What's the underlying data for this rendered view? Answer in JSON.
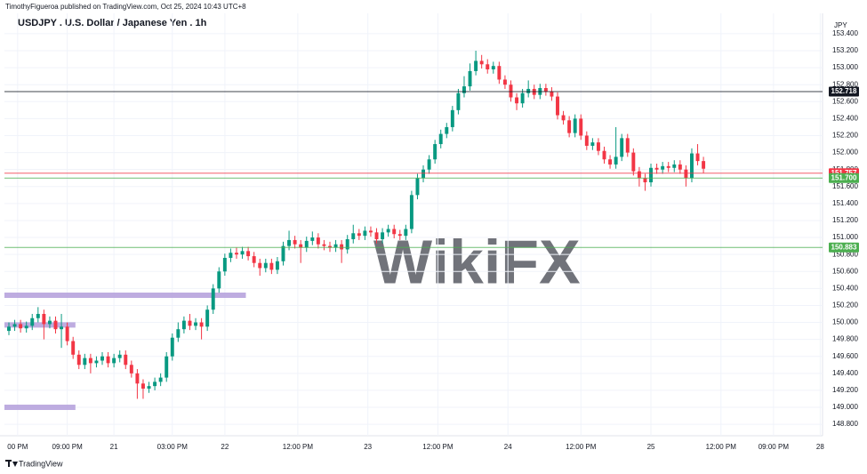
{
  "header": {
    "publisher": "TimothyFigueroa published on TradingView.com, Oct 25, 2024 10:43 UTC+8"
  },
  "footer": {
    "brand": "TradingView"
  },
  "watermark": "WikiFX",
  "chart_data": {
    "type": "candlestick",
    "title": "USDJPY . U.S. Dollar / Japanese Yen . 1h",
    "currency": "JPY",
    "up_color": "#089981",
    "down_color": "#f23645",
    "open": [
      149.9,
      149.95,
      149.98,
      149.93,
      149.96,
      150.05,
      150.1,
      149.98,
      150.02,
      149.92,
      149.95,
      149.78,
      149.62,
      149.5,
      149.58,
      149.52,
      149.55,
      149.6,
      149.52,
      149.58,
      149.62,
      149.5,
      149.4,
      149.28,
      149.22,
      149.25,
      149.3,
      149.35,
      149.6,
      149.82,
      149.92,
      150.02,
      149.96,
      150.0,
      149.95,
      150.15,
      150.4,
      150.6,
      150.76,
      150.82,
      150.8,
      150.84,
      150.78,
      150.7,
      150.64,
      150.7,
      150.62,
      150.72,
      150.9,
      150.97,
      150.92,
      150.88,
      150.96,
      151.0,
      150.92,
      150.9,
      150.88,
      150.92,
      150.86,
      150.98,
      151.05,
      151.02,
      151.08,
      151.06,
      150.98,
      151.06,
      151.1,
      151.04,
      151.02,
      151.1,
      151.5,
      151.7,
      151.8,
      151.92,
      152.1,
      152.22,
      152.3,
      152.5,
      152.7,
      152.78,
      152.96,
      153.08,
      153.04,
      152.98,
      153.02,
      152.86,
      152.8,
      152.65,
      152.58,
      152.7,
      152.75,
      152.68,
      152.76,
      152.72,
      152.66,
      152.44,
      152.38,
      152.23,
      152.4,
      152.2,
      152.08,
      152.12,
      152.02,
      151.92,
      151.86,
      151.95,
      152.17,
      152.0,
      151.78,
      151.7,
      151.65,
      151.82,
      151.8,
      151.84,
      151.82,
      151.86,
      151.8,
      151.7,
      151.99,
      151.9
    ],
    "high": [
      150.0,
      150.03,
      150.03,
      150.01,
      150.1,
      150.18,
      150.15,
      150.07,
      150.07,
      150.1,
      150.0,
      149.83,
      149.67,
      149.63,
      149.63,
      149.6,
      149.65,
      149.65,
      149.63,
      149.67,
      149.67,
      149.55,
      149.45,
      149.33,
      149.3,
      149.35,
      149.4,
      149.65,
      149.87,
      150.0,
      150.07,
      150.1,
      150.05,
      150.05,
      150.2,
      150.45,
      150.65,
      150.81,
      150.87,
      150.88,
      150.89,
      150.89,
      150.83,
      150.75,
      150.75,
      150.75,
      150.77,
      150.95,
      151.08,
      151.02,
      150.97,
      151.01,
      151.07,
      151.05,
      150.97,
      150.95,
      150.97,
      150.97,
      151.03,
      151.15,
      151.1,
      151.13,
      151.13,
      151.11,
      151.11,
      151.15,
      151.15,
      151.09,
      151.15,
      151.55,
      151.75,
      151.85,
      151.97,
      152.15,
      152.27,
      152.35,
      152.55,
      152.75,
      152.9,
      153.05,
      153.2,
      153.15,
      153.1,
      153.07,
      153.07,
      152.91,
      152.85,
      152.7,
      152.75,
      152.85,
      152.8,
      152.81,
      152.81,
      152.77,
      152.71,
      152.49,
      152.43,
      152.45,
      152.45,
      152.25,
      152.17,
      152.17,
      152.07,
      151.97,
      152.3,
      152.22,
      152.22,
      152.05,
      151.83,
      151.75,
      151.87,
      151.87,
      151.89,
      151.89,
      151.91,
      151.91,
      151.85,
      152.05,
      152.1,
      151.95
    ],
    "low": [
      149.85,
      149.9,
      149.88,
      149.88,
      149.91,
      150.0,
      149.8,
      149.93,
      149.87,
      149.7,
      149.73,
      149.57,
      149.45,
      149.45,
      149.4,
      149.47,
      149.5,
      149.47,
      149.47,
      149.53,
      149.45,
      149.35,
      149.1,
      149.1,
      149.17,
      149.2,
      149.25,
      149.3,
      149.55,
      149.77,
      149.87,
      149.91,
      149.91,
      149.8,
      149.9,
      150.1,
      150.35,
      150.55,
      150.71,
      150.75,
      150.75,
      150.73,
      150.65,
      150.55,
      150.59,
      150.57,
      150.57,
      150.67,
      150.85,
      150.87,
      150.7,
      150.83,
      150.91,
      150.87,
      150.85,
      150.83,
      150.83,
      150.7,
      150.81,
      150.93,
      150.97,
      150.97,
      151.01,
      150.93,
      150.93,
      151.01,
      150.99,
      150.97,
      150.97,
      151.05,
      151.45,
      151.65,
      151.75,
      151.87,
      152.05,
      152.17,
      152.25,
      152.45,
      152.65,
      152.73,
      152.91,
      152.99,
      152.93,
      152.93,
      152.81,
      152.75,
      152.6,
      152.5,
      152.53,
      152.65,
      152.63,
      152.63,
      152.67,
      152.61,
      152.39,
      152.33,
      152.18,
      152.18,
      152.15,
      152.03,
      152.03,
      151.97,
      151.87,
      151.81,
      151.81,
      151.9,
      151.95,
      151.73,
      151.6,
      151.55,
      151.6,
      151.75,
      151.75,
      151.77,
      151.77,
      151.75,
      151.6,
      151.65,
      151.85,
      151.76
    ],
    "close": [
      149.95,
      149.98,
      149.93,
      149.96,
      150.05,
      150.1,
      149.98,
      150.02,
      149.92,
      149.95,
      149.78,
      149.62,
      149.5,
      149.58,
      149.52,
      149.55,
      149.6,
      149.52,
      149.58,
      149.62,
      149.5,
      149.4,
      149.28,
      149.22,
      149.25,
      149.3,
      149.35,
      149.6,
      149.82,
      149.92,
      150.02,
      149.96,
      150.0,
      149.95,
      150.15,
      150.4,
      150.6,
      150.76,
      150.82,
      150.8,
      150.84,
      150.78,
      150.7,
      150.64,
      150.7,
      150.62,
      150.72,
      150.9,
      150.97,
      150.92,
      150.88,
      150.96,
      151.0,
      150.92,
      150.9,
      150.88,
      150.92,
      150.86,
      150.98,
      151.05,
      151.02,
      151.08,
      151.06,
      150.98,
      151.06,
      151.1,
      151.04,
      151.02,
      151.1,
      151.5,
      151.7,
      151.8,
      151.92,
      152.1,
      152.22,
      152.3,
      152.5,
      152.7,
      152.78,
      152.96,
      153.08,
      153.04,
      152.98,
      153.02,
      152.86,
      152.8,
      152.65,
      152.58,
      152.7,
      152.75,
      152.68,
      152.76,
      152.72,
      152.66,
      152.44,
      152.38,
      152.23,
      152.4,
      152.2,
      152.08,
      152.12,
      152.02,
      151.92,
      151.86,
      151.95,
      152.17,
      152.0,
      151.78,
      151.7,
      151.65,
      151.82,
      151.8,
      151.84,
      151.82,
      151.86,
      151.8,
      151.7,
      151.99,
      151.9,
      151.81
    ],
    "xlim": [
      -0.76,
      139.4
    ],
    "xticks": [
      {
        "value": 1.5,
        "label": "00 PM"
      },
      {
        "value": 10,
        "label": "09:00 PM"
      },
      {
        "value": 18,
        "label": "21"
      },
      {
        "value": 28,
        "label": "03:00 PM"
      },
      {
        "value": 37,
        "label": "22"
      },
      {
        "value": 49.5,
        "label": "12:00 PM"
      },
      {
        "value": 61.5,
        "label": "23"
      },
      {
        "value": 73.5,
        "label": "12:00 PM"
      },
      {
        "value": 85.5,
        "label": "24"
      },
      {
        "value": 98,
        "label": "12:00 PM"
      },
      {
        "value": 110,
        "label": "25"
      },
      {
        "value": 122,
        "label": "12:00 PM"
      },
      {
        "value": 131,
        "label": "09:00 PM"
      },
      {
        "value": 139,
        "label": "28"
      }
    ],
    "ylim": [
      148.665,
      153.64
    ],
    "yticks": [
      {
        "value": 148.8,
        "label": "148.800"
      },
      {
        "value": 149.0,
        "label": "149.000"
      },
      {
        "value": 149.2,
        "label": "149.200"
      },
      {
        "value": 149.4,
        "label": "149.400"
      },
      {
        "value": 149.6,
        "label": "149.600"
      },
      {
        "value": 149.8,
        "label": "149.800"
      },
      {
        "value": 150.0,
        "label": "150.000"
      },
      {
        "value": 150.2,
        "label": "150.200"
      },
      {
        "value": 150.4,
        "label": "150.400"
      },
      {
        "value": 150.6,
        "label": "150.600"
      },
      {
        "value": 150.8,
        "label": "150.800"
      },
      {
        "value": 151.0,
        "label": "151.000"
      },
      {
        "value": 151.2,
        "label": "151.200"
      },
      {
        "value": 151.4,
        "label": "151.400"
      },
      {
        "value": 151.6,
        "label": "151.600"
      },
      {
        "value": 151.8,
        "label": "151.800"
      },
      {
        "value": 152.0,
        "label": "152.000"
      },
      {
        "value": 152.2,
        "label": "152.200"
      },
      {
        "value": 152.4,
        "label": "152.400"
      },
      {
        "value": 152.6,
        "label": "152.600"
      },
      {
        "value": 152.8,
        "label": "152.800"
      },
      {
        "value": 153.0,
        "label": "153.000"
      },
      {
        "value": 153.2,
        "label": "153.200"
      },
      {
        "value": 153.4,
        "label": "153.400"
      }
    ],
    "grid": true,
    "levels": [
      {
        "price": 152.718,
        "label": "152.718",
        "color": "#131722"
      },
      {
        "price": 151.757,
        "label": "151.757",
        "color": "#f23645"
      },
      {
        "price": 151.7,
        "label": "151.700",
        "color": "#4caf50"
      },
      {
        "price": 150.883,
        "label": "150.883",
        "color": "#4caf50"
      }
    ],
    "zones": [
      {
        "price": 150.32,
        "x_end": 40.6,
        "color": "#b39ddb"
      },
      {
        "price": 149.97,
        "x_end": 11.4,
        "color": "#b39ddb"
      },
      {
        "price": 149.0,
        "x_end": 11.4,
        "color": "#b39ddb"
      }
    ]
  }
}
